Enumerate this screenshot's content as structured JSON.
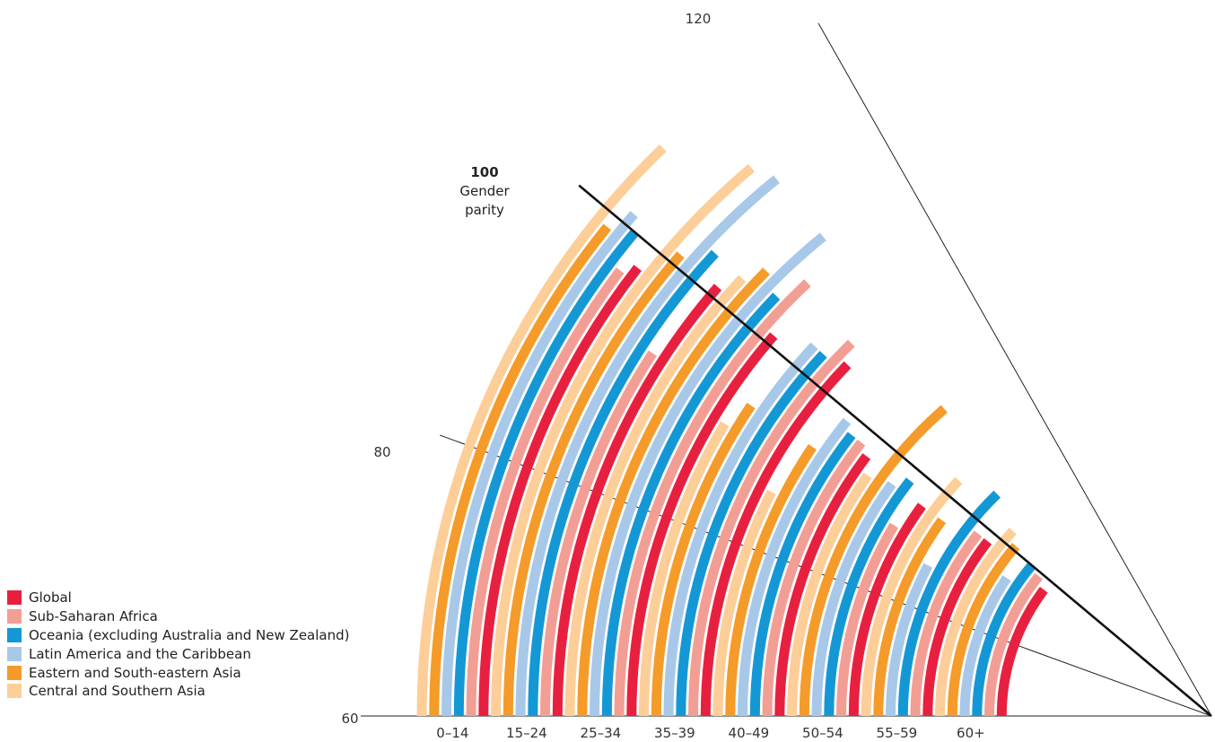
{
  "chart_data": {
    "type": "radial-bar",
    "categories": [
      "0–14",
      "15–24",
      "25–34",
      "35–39",
      "40–49",
      "50–54",
      "55–59",
      "60+"
    ],
    "axis": {
      "min": 60,
      "max": 120,
      "ticks": [
        "60",
        "80",
        "120"
      ]
    },
    "parity": {
      "value": "100",
      "label_line1": "Gender",
      "label_line2": "parity",
      "value_num": 100
    },
    "series": [
      {
        "name": "Global",
        "color": "#E8203F",
        "values": [
          98,
          101,
          101,
          104,
          97,
          96,
          98,
          97
        ]
      },
      {
        "name": "Sub-Saharan Africa",
        "color": "#F29E95",
        "values": [
          97,
          93,
          107,
          106,
          98,
          91,
          98,
          99
        ]
      },
      {
        "name": "Oceania (excluding Australia and New Zealand)",
        "color": "#1498D5",
        "values": [
          100,
          103,
          104,
          103,
          98,
          98,
          106,
          100
        ]
      },
      {
        "name": "Latin America and the Caribbean",
        "color": "#A8C8E9",
        "values": [
          101,
          111,
          111,
          103,
          99,
          96,
          88,
          94
        ]
      },
      {
        "name": "Eastern and South-eastern Asia",
        "color": "#F59B2A",
        "values": [
          99,
          101,
          105,
          94,
          94,
          109,
          96,
          101
        ]
      },
      {
        "name": "Central and Southern Asia",
        "color": "#FDCE98",
        "values": [
          106,
          110,
          103,
          91,
          87,
          95,
          103,
          103
        ]
      }
    ]
  }
}
